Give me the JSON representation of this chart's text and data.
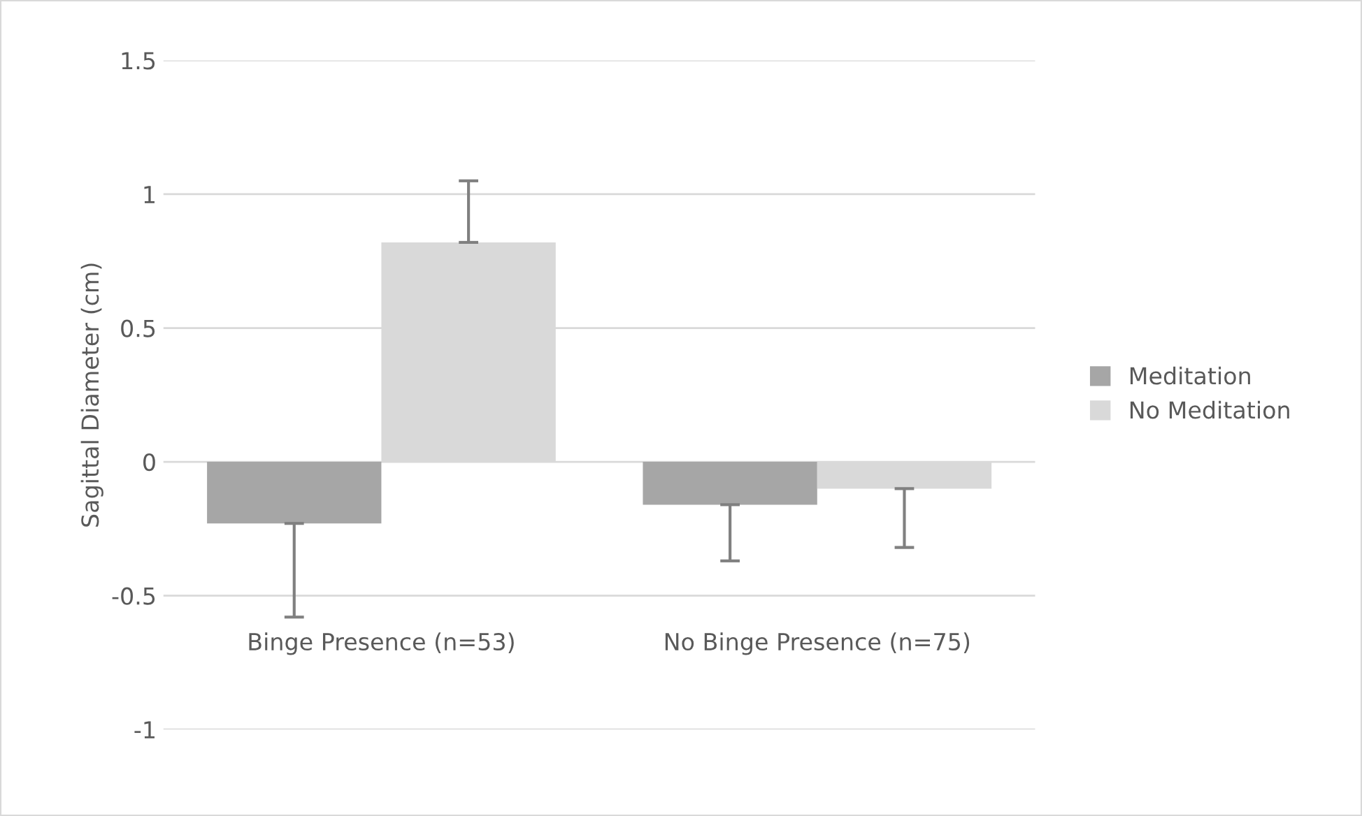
{
  "chart_data": {
    "type": "bar",
    "ylabel": "Sagittal Diameter (cm)",
    "categories": [
      "Binge Presence (n=53)",
      "No Binge Presence (n=75)"
    ],
    "series": [
      {
        "name": "Meditation",
        "color": "#a6a6a6",
        "values": [
          -0.23,
          -0.16
        ],
        "errors": [
          [
            -0.58,
            -0.23
          ],
          [
            -0.37,
            -0.16
          ]
        ]
      },
      {
        "name": "No Meditation",
        "color": "#d9d9d9",
        "values": [
          0.82,
          -0.1
        ],
        "errors": [
          [
            0.82,
            1.05
          ],
          [
            -0.32,
            -0.1
          ]
        ]
      }
    ],
    "ylim": [
      -1,
      1.5
    ],
    "yticks": [
      {
        "value": -1,
        "label": "-1"
      },
      {
        "value": -0.5,
        "label": "-0.5"
      },
      0,
      0.5,
      1,
      1.5
    ],
    "grid": "y",
    "legend": "right"
  }
}
